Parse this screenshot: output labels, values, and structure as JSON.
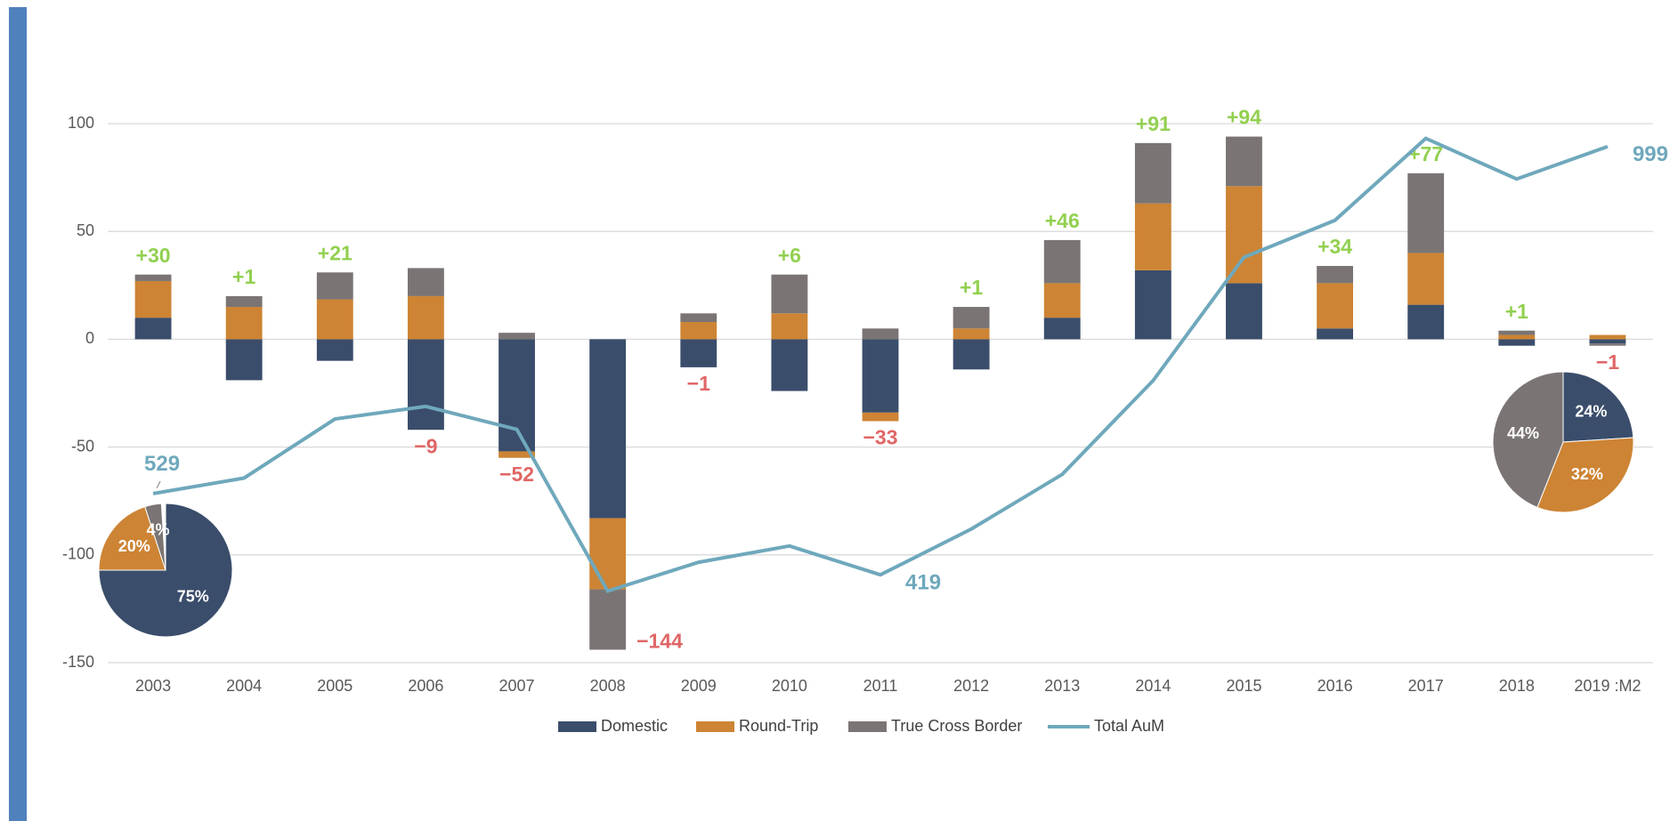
{
  "chart_data": [
    {
      "type": "combo",
      "categories": [
        "2003",
        "2004",
        "2005",
        "2006",
        "2007",
        "2008",
        "2009",
        "2010",
        "2011",
        "2012",
        "2013",
        "2014",
        "2015",
        "2016",
        "2017",
        "2018",
        "2019 :M2"
      ],
      "series": [
        {
          "name": "Domestic",
          "color": "#3a4d6b",
          "values": [
            10,
            -19,
            -10,
            -42,
            -52,
            -83,
            -13,
            -24,
            -34,
            -14,
            10,
            32,
            26,
            5,
            16,
            -3,
            -2
          ]
        },
        {
          "name": "Round-Trip",
          "color": "#cd8434",
          "values": [
            17,
            15,
            18.5,
            20,
            -3,
            -33,
            8,
            12,
            -4,
            5,
            16,
            31,
            45,
            21,
            24,
            2,
            2
          ]
        },
        {
          "name": "True Cross Border",
          "color": "#7a7574",
          "values": [
            3,
            5,
            12.5,
            13,
            3,
            -28,
            4,
            18,
            5,
            10,
            20,
            28,
            23,
            8,
            37,
            2,
            -1
          ]
        },
        {
          "name": "Total AuM",
          "color": "#6fa8bc",
          "type": "line",
          "axis": "y2",
          "values": [
            529,
            550,
            630,
            647,
            616,
            397,
            436,
            458,
            419,
            481,
            555,
            682,
            849,
            899,
            1010,
            955,
            999
          ],
          "value_labels": [
            "529",
            null,
            null,
            null,
            null,
            null,
            null,
            null,
            "419",
            null,
            null,
            null,
            null,
            null,
            null,
            null,
            "999"
          ]
        }
      ],
      "net": {
        "values": [
          30,
          1,
          21,
          -9,
          -52,
          -144,
          -1,
          6,
          -33,
          1,
          46,
          91,
          94,
          34,
          77,
          1,
          -1
        ],
        "value_labels": [
          "+30",
          "+1",
          "+21",
          "−9",
          "−52",
          "−144",
          "−1",
          "+6",
          "−33",
          "+1",
          "+46",
          "+91",
          "+94",
          "+34",
          "+77",
          "+1",
          "−1"
        ],
        "positive_color": "#92d050",
        "negative_color": "#e06666"
      },
      "ylim": [
        -150,
        100
      ],
      "yticks": [
        -150,
        -100,
        -50,
        0,
        50,
        100
      ],
      "y2lim": [
        300,
        1030
      ],
      "grid": true,
      "legend": "bottom"
    },
    {
      "type": "pie",
      "values": [
        75,
        20,
        4
      ],
      "value_labels": [
        "75%",
        "20%",
        "4%"
      ],
      "colors": [
        "#3a4d6b",
        "#cd8434",
        "#7a7574"
      ]
    },
    {
      "type": "pie",
      "values": [
        24,
        32,
        44
      ],
      "value_labels": [
        "24%",
        "32%",
        "44%"
      ],
      "colors": [
        "#3a4d6b",
        "#cd8434",
        "#7a7574"
      ]
    }
  ]
}
